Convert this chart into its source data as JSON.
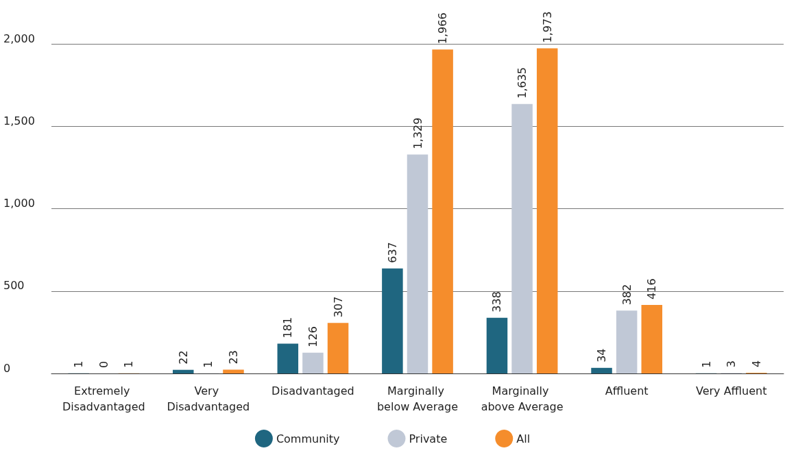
{
  "chart_data": {
    "type": "bar",
    "categories": [
      "Extremely Disadvantaged",
      "Very Disadvantaged",
      "Disadvantaged",
      "Marginally below Average",
      "Marginally above Average",
      "Affluent",
      "Very Affluent"
    ],
    "series": [
      {
        "name": "Community",
        "color": "#1f6680",
        "values": [
          1,
          22,
          181,
          637,
          338,
          34,
          1
        ],
        "value_labels": [
          "1",
          "22",
          "181",
          "637",
          "338",
          "34",
          "1"
        ]
      },
      {
        "name": "Private",
        "color": "#c0c8d6",
        "values": [
          0,
          1,
          126,
          1329,
          1635,
          382,
          3
        ],
        "value_labels": [
          "0",
          "1",
          "126",
          "1,329",
          "1,635",
          "382",
          "3"
        ]
      },
      {
        "name": "All",
        "color": "#f58d2c",
        "values": [
          1,
          23,
          307,
          1966,
          1973,
          416,
          4
        ],
        "value_labels": [
          "1",
          "23",
          "307",
          "1,966",
          "1,973",
          "416",
          "4"
        ]
      }
    ],
    "ylim": [
      0,
      2000
    ],
    "yticks": [
      0,
      500,
      {
        "value": 1000,
        "label": "1,000"
      },
      {
        "value": 1500,
        "label": "1,500"
      },
      {
        "value": 2000,
        "label": "2,000"
      }
    ],
    "grid": "y",
    "legend": "bottom"
  }
}
